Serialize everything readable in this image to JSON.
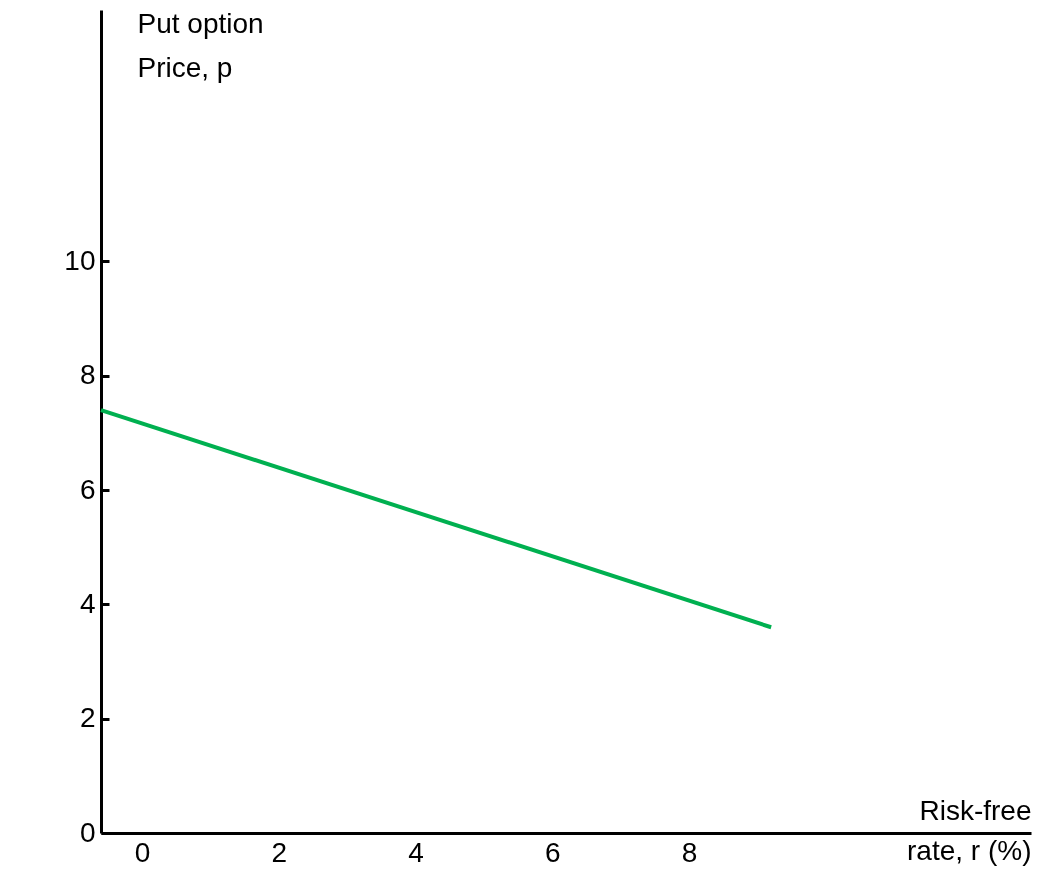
{
  "chart_data": {
    "type": "line",
    "xlabel": "Risk-free\nrate, r (%)",
    "ylabel": "Put option\nPrice, p",
    "x": [
      -0.6,
      9.2
    ],
    "series": [
      {
        "color": "#00b050",
        "values": [
          7.4,
          3.6
        ]
      }
    ],
    "xlim": [
      -0.6,
      13
    ],
    "ylim": [
      0,
      14.4
    ],
    "xticks": [
      0,
      2,
      4,
      6,
      8
    ],
    "yticks": [
      0,
      2,
      4,
      6,
      8,
      10
    ],
    "grid": false,
    "legend": false,
    "marker": "none",
    "line_style": "solid"
  }
}
